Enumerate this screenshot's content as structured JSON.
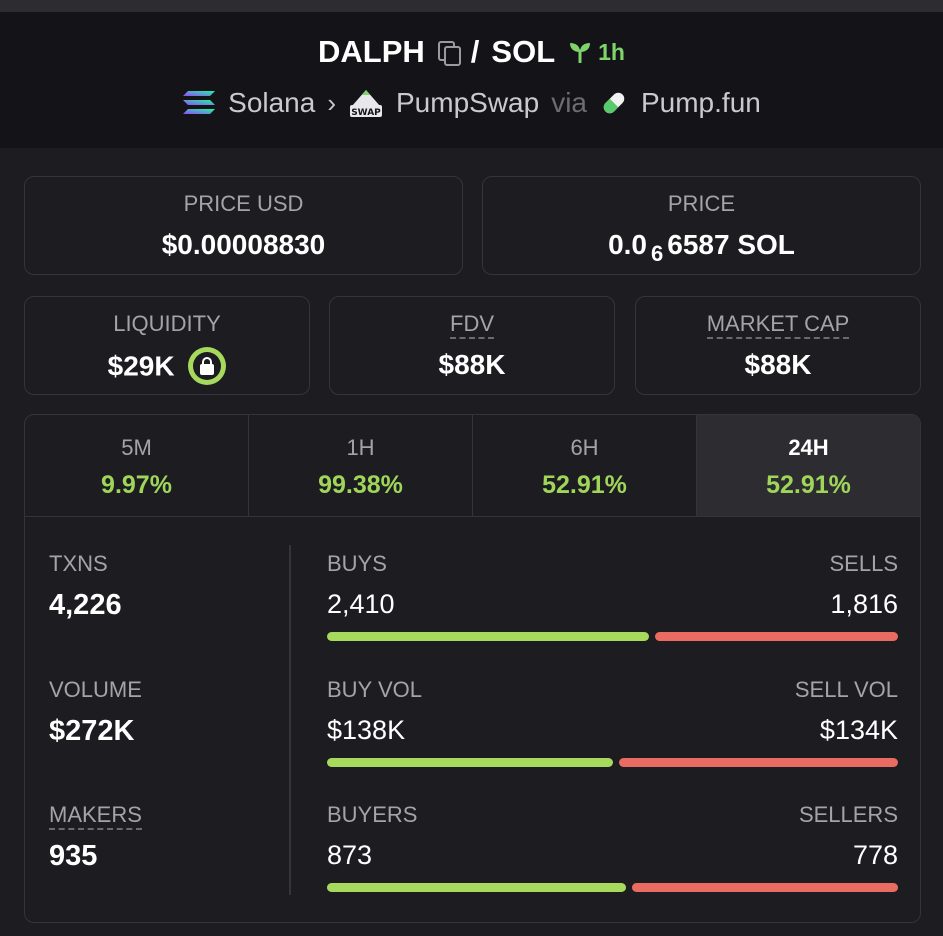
{
  "pair": {
    "base": "DALPH",
    "separator": "/",
    "quote": "SOL",
    "age": "1h"
  },
  "route": {
    "chain": "Solana",
    "dex": "PumpSwap",
    "via": "via",
    "launchpad": "Pump.fun",
    "dex_badge": "SWAP"
  },
  "price_usd": {
    "label": "PRICE USD",
    "value": "$0.00008830"
  },
  "price_native": {
    "label": "PRICE",
    "prefix": "0.0",
    "zeros_subscript": "6",
    "digits": "6587",
    "unit": "SOL"
  },
  "liquidity": {
    "label": "LIQUIDITY",
    "value": "$29K"
  },
  "fdv": {
    "label": "FDV",
    "value": "$88K"
  },
  "market_cap": {
    "label": "MARKET CAP",
    "value": "$88K"
  },
  "timeframes": [
    {
      "label": "5M",
      "change": "9.97%"
    },
    {
      "label": "1H",
      "change": "99.38%"
    },
    {
      "label": "6H",
      "change": "52.91%"
    },
    {
      "label": "24H",
      "change": "52.91%",
      "active": true
    }
  ],
  "txns": {
    "label": "TXNS",
    "value": "4,226"
  },
  "volume": {
    "label": "VOLUME",
    "value": "$272K"
  },
  "makers": {
    "label": "MAKERS",
    "value": "935"
  },
  "buys_sells": {
    "left_label": "BUYS",
    "left_value": "2,410",
    "right_label": "SELLS",
    "right_value": "1,816",
    "buy_fraction": 0.57
  },
  "buy_sell_vol": {
    "left_label": "BUY VOL",
    "left_value": "$138K",
    "right_label": "SELL VOL",
    "right_value": "$134K",
    "buy_fraction": 0.507
  },
  "buyers_sellers": {
    "left_label": "BUYERS",
    "left_value": "873",
    "right_label": "SELLERS",
    "right_value": "778",
    "buy_fraction": 0.529
  },
  "colors": {
    "positive": "#9fd65a",
    "buy_bar": "#a6d95c",
    "sell_bar": "#ea6b61",
    "background": "#1c1c21",
    "header": "#141418"
  }
}
